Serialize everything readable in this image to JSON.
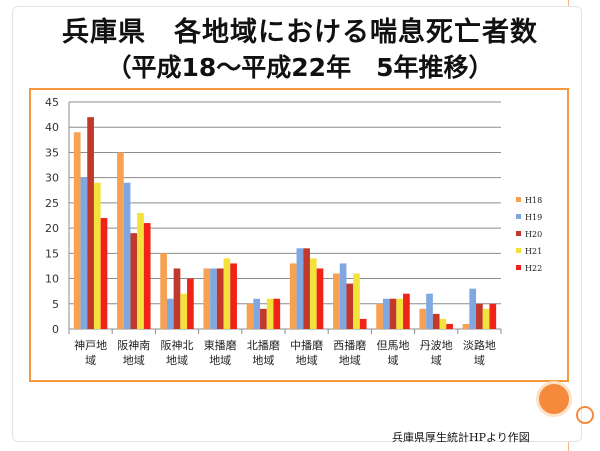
{
  "title": "兵庫県　各地域における喘息死亡者数",
  "subtitle": "（平成18～平成22年　5年推移）",
  "source": "兵庫県厚生統計HPより作図",
  "chart_data": {
    "type": "bar",
    "categories": [
      [
        "神戸地",
        "域"
      ],
      [
        "阪神南",
        "地域"
      ],
      [
        "阪神北",
        "地域"
      ],
      [
        "東播磨",
        "地域"
      ],
      [
        "北播磨",
        "地域"
      ],
      [
        "中播磨",
        "地域"
      ],
      [
        "西播磨",
        "地域"
      ],
      [
        "但馬地",
        "域"
      ],
      [
        "丹波地",
        "域"
      ],
      [
        "淡路地",
        "域"
      ]
    ],
    "series": [
      {
        "name": "H18",
        "color": "#f7a152",
        "values": [
          39,
          35,
          15,
          12,
          5,
          13,
          11,
          5,
          4,
          1
        ]
      },
      {
        "name": "H19",
        "color": "#7fa7e2",
        "values": [
          30,
          29,
          6,
          12,
          6,
          16,
          13,
          6,
          7,
          8
        ]
      },
      {
        "name": "H20",
        "color": "#c0392b",
        "values": [
          42,
          19,
          12,
          12,
          4,
          16,
          9,
          6,
          3,
          5
        ]
      },
      {
        "name": "H21",
        "color": "#f4e23c",
        "values": [
          29,
          23,
          7,
          14,
          6,
          14,
          11,
          6,
          2,
          4
        ]
      },
      {
        "name": "H22",
        "color": "#f02318",
        "values": [
          22,
          21,
          10,
          13,
          6,
          12,
          2,
          7,
          1,
          5
        ]
      }
    ],
    "yticks": [
      0,
      5,
      10,
      15,
      20,
      25,
      30,
      35,
      40,
      45
    ],
    "ylim": [
      0,
      45
    ],
    "grid": true,
    "legend_position": "right"
  }
}
